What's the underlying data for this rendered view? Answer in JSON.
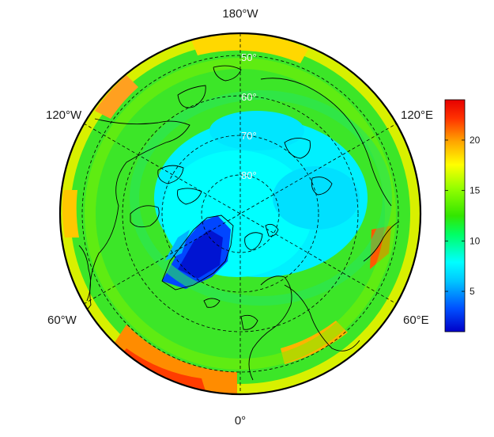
{
  "map": {
    "projection": "north polar stereographic",
    "center_longitude_label": "0°",
    "longitude_labels": [
      {
        "key": "lon-180w",
        "text": "180°W"
      },
      {
        "key": "lon-120w",
        "text": "120°W"
      },
      {
        "key": "lon-120e",
        "text": "120°E"
      },
      {
        "key": "lon-60w",
        "text": "60°W"
      },
      {
        "key": "lon-60e",
        "text": "60°E"
      },
      {
        "key": "lon-0",
        "text": "0°"
      }
    ],
    "latitude_labels": [
      "50°",
      "60°",
      "70°",
      "80°"
    ],
    "graticule_style": "dashed"
  },
  "colorbar": {
    "tick_labels": [
      "5",
      "10",
      "15",
      "20"
    ],
    "min": 1,
    "max": 24,
    "colors": [
      "#0000c8",
      "#0050ff",
      "#00c8ff",
      "#00ffff",
      "#00ff64",
      "#32e600",
      "#96ff00",
      "#ffff00",
      "#ffa500",
      "#ff3200",
      "#e60000"
    ]
  }
}
